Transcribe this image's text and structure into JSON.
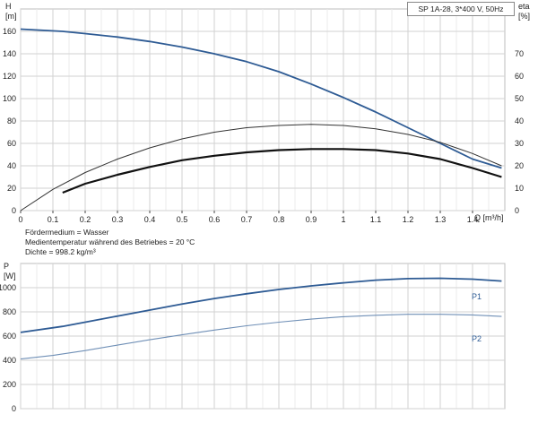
{
  "chart_data": [
    {
      "type": "line",
      "title": "SP 1A-28, 3*400 V, 50Hz",
      "xlabel": "Q [m³/h]",
      "ylabel_left": "H [m]",
      "ylabel_right": "eta [%]",
      "xlim": [
        0,
        1.5
      ],
      "ylim_left": [
        0,
        180
      ],
      "ylim_right": [
        0,
        90
      ],
      "x_ticks": [
        "0",
        "0.1",
        "0.2",
        "0.3",
        "0.4",
        "0.5",
        "0.6",
        "0.7",
        "0.8",
        "0.9",
        "1",
        "1.1",
        "1.2",
        "1.3",
        "1.4"
      ],
      "y_ticks_left": [
        "0",
        "20",
        "40",
        "60",
        "80",
        "100",
        "120",
        "140",
        "160"
      ],
      "y_ticks_right": [
        "0",
        "10",
        "20",
        "30",
        "40",
        "50",
        "60",
        "70"
      ],
      "grid": true,
      "series": [
        {
          "axis": "left",
          "color": "#2e5b94",
          "x": [
            0,
            0.13,
            0.2,
            0.3,
            0.4,
            0.5,
            0.6,
            0.7,
            0.8,
            0.9,
            1.0,
            1.1,
            1.2,
            1.3,
            1.4,
            1.49
          ],
          "y": [
            162,
            160,
            158,
            155,
            151,
            146,
            140,
            133,
            124,
            113,
            101,
            88,
            74,
            60,
            46,
            38
          ]
        },
        {
          "axis": "right",
          "color": "#333333",
          "x": [
            0,
            0.1,
            0.2,
            0.3,
            0.4,
            0.5,
            0.6,
            0.7,
            0.8,
            0.9,
            1.0,
            1.1,
            1.2,
            1.3,
            1.4,
            1.49
          ],
          "y": [
            0,
            9.5,
            17,
            23,
            28,
            32,
            35,
            37,
            38,
            38.5,
            38,
            36.5,
            34,
            30.5,
            25.5,
            20
          ]
        },
        {
          "axis": "right",
          "color": "#111111",
          "x": [
            0.13,
            0.2,
            0.3,
            0.4,
            0.5,
            0.6,
            0.7,
            0.8,
            0.9,
            1.0,
            1.1,
            1.2,
            1.3,
            1.4,
            1.49
          ],
          "y": [
            8,
            12,
            16,
            19.5,
            22.5,
            24.5,
            26,
            27,
            27.5,
            27.5,
            27,
            25.5,
            23,
            19,
            15
          ]
        }
      ]
    },
    {
      "type": "line",
      "xlim": [
        0,
        1.5
      ],
      "ylabel": "P [W]",
      "ylim": [
        0,
        1200
      ],
      "y_ticks": [
        "0",
        "200",
        "400",
        "600",
        "800",
        "1000"
      ],
      "grid": true,
      "series": [
        {
          "name": "P1",
          "color": "#2e5b94",
          "x": [
            0,
            0.13,
            0.2,
            0.3,
            0.4,
            0.5,
            0.6,
            0.7,
            0.8,
            0.9,
            1.0,
            1.1,
            1.2,
            1.3,
            1.4,
            1.49
          ],
          "y": [
            630,
            680,
            715,
            765,
            815,
            865,
            910,
            950,
            985,
            1015,
            1040,
            1062,
            1075,
            1078,
            1070,
            1055
          ]
        },
        {
          "name": "P2",
          "color": "#6f8fb6",
          "x": [
            0,
            0.1,
            0.2,
            0.3,
            0.4,
            0.5,
            0.6,
            0.7,
            0.8,
            0.9,
            1.0,
            1.1,
            1.2,
            1.3,
            1.4,
            1.49
          ],
          "y": [
            410,
            440,
            480,
            525,
            570,
            610,
            650,
            685,
            715,
            740,
            760,
            772,
            780,
            780,
            775,
            762
          ]
        }
      ]
    }
  ],
  "notes": {
    "medium": "Fördermedium = Wasser",
    "temperature": "Medientemperatur während des Betriebes = 20 °C",
    "density": "Dichte = 998.2 kg/m³"
  },
  "labels": {
    "h": "H",
    "h_unit": "[m]",
    "eta": "eta",
    "eta_unit": "[%]",
    "q": "Q [m³/h]",
    "p": "P",
    "p_unit": "[W]",
    "p1": "P1",
    "p2": "P2"
  }
}
